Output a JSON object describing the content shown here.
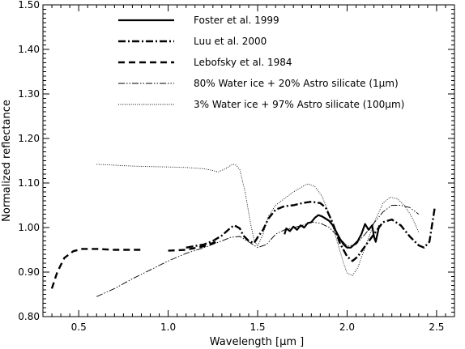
{
  "chart_data": {
    "type": "line",
    "title": "",
    "xlabel": "Wavelength [μm ]",
    "ylabel": "Normalized reflectance",
    "xlim": [
      0.3,
      2.6
    ],
    "ylim": [
      0.8,
      1.5
    ],
    "xticks": [
      "0.5",
      "1.0",
      "1.5",
      "2.0",
      "2.5"
    ],
    "yticks": [
      "0.80",
      "0.90",
      "1.00",
      "1.10",
      "1.20",
      "1.30",
      "1.40",
      "1.50"
    ],
    "grid": false,
    "legend_position": "top",
    "series": [
      {
        "name": "Foster et al. 1999",
        "style": "solid-thick",
        "color": "#000000",
        "segments": [
          [
            [
              1.65,
              0.985
            ],
            [
              1.66,
              0.998
            ],
            [
              1.68,
              0.992
            ],
            [
              1.7,
              1.002
            ],
            [
              1.72,
              0.995
            ],
            [
              1.74,
              1.005
            ],
            [
              1.76,
              1.0
            ],
            [
              1.78,
              1.01
            ],
            [
              1.8,
              1.012
            ],
            [
              1.82,
              1.022
            ],
            [
              1.84,
              1.028
            ],
            [
              1.86,
              1.025
            ],
            [
              1.88,
              1.02
            ],
            [
              1.9,
              1.015
            ],
            [
              1.92,
              1.005
            ],
            [
              1.94,
              0.99
            ],
            [
              1.96,
              0.975
            ],
            [
              1.98,
              0.962
            ],
            [
              2.0,
              0.955
            ],
            [
              2.02,
              0.955
            ],
            [
              2.04,
              0.962
            ],
            [
              2.06,
              0.97
            ],
            [
              2.08,
              0.985
            ],
            [
              2.1,
              1.008
            ],
            [
              2.12,
              0.995
            ],
            [
              2.14,
              1.005
            ],
            [
              2.15,
              0.98
            ],
            [
              2.16,
              0.968
            ],
            [
              2.18,
              1.005
            ]
          ]
        ]
      },
      {
        "name": "Luu et al. 2000",
        "style": "dash-dot-thick",
        "color": "#000000",
        "segments": [
          [
            [
              1.1,
              0.955
            ],
            [
              1.2,
              0.962
            ],
            [
              1.25,
              0.97
            ],
            [
              1.3,
              0.982
            ],
            [
              1.35,
              1.0
            ],
            [
              1.37,
              1.005
            ],
            [
              1.4,
              0.998
            ],
            [
              1.42,
              0.982
            ],
            [
              1.45,
              0.97
            ],
            [
              1.48,
              0.965
            ],
            [
              1.5,
              0.978
            ],
            [
              1.53,
              0.995
            ],
            [
              1.56,
              1.02
            ],
            [
              1.6,
              1.04
            ],
            [
              1.65,
              1.048
            ],
            [
              1.7,
              1.05
            ],
            [
              1.75,
              1.055
            ],
            [
              1.8,
              1.058
            ],
            [
              1.85,
              1.055
            ],
            [
              1.88,
              1.045
            ],
            [
              1.92,
              1.01
            ],
            [
              1.96,
              0.965
            ],
            [
              2.0,
              0.935
            ],
            [
              2.03,
              0.925
            ],
            [
              2.06,
              0.935
            ],
            [
              2.1,
              0.958
            ],
            [
              2.15,
              0.985
            ],
            [
              2.2,
              1.012
            ],
            [
              2.25,
              1.018
            ],
            [
              2.3,
              1.005
            ],
            [
              2.35,
              0.98
            ],
            [
              2.4,
              0.96
            ],
            [
              2.43,
              0.955
            ],
            [
              2.46,
              0.968
            ],
            [
              2.49,
              1.045
            ]
          ]
        ]
      },
      {
        "name": "Lebofsky et al. 1984",
        "style": "dashed-thick",
        "color": "#000000",
        "segments": [
          [
            [
              0.35,
              0.863
            ],
            [
              0.38,
              0.9
            ],
            [
              0.42,
              0.932
            ],
            [
              0.47,
              0.947
            ],
            [
              0.52,
              0.952
            ],
            [
              0.6,
              0.952
            ],
            [
              0.7,
              0.95
            ],
            [
              0.8,
              0.95
            ],
            [
              0.85,
              0.95
            ]
          ],
          [
            [
              1.0,
              0.948
            ],
            [
              1.1,
              0.95
            ],
            [
              1.2,
              0.958
            ],
            [
              1.27,
              0.968
            ]
          ]
        ]
      },
      {
        "name": "80% Water ice + 20% Astro silicate (1μm)",
        "style": "dash-dot-dot-thin",
        "color": "#000000",
        "segments": [
          [
            [
              0.6,
              0.845
            ],
            [
              0.7,
              0.863
            ],
            [
              0.8,
              0.885
            ],
            [
              0.9,
              0.905
            ],
            [
              1.0,
              0.925
            ],
            [
              1.1,
              0.942
            ],
            [
              1.2,
              0.955
            ],
            [
              1.3,
              0.97
            ],
            [
              1.35,
              0.978
            ],
            [
              1.4,
              0.98
            ],
            [
              1.45,
              0.968
            ],
            [
              1.5,
              0.955
            ],
            [
              1.55,
              0.962
            ],
            [
              1.6,
              0.985
            ],
            [
              1.65,
              0.995
            ],
            [
              1.7,
              1.0
            ],
            [
              1.75,
              1.005
            ],
            [
              1.8,
              1.012
            ],
            [
              1.85,
              1.01
            ],
            [
              1.9,
              1.0
            ],
            [
              1.95,
              0.98
            ],
            [
              2.0,
              0.958
            ],
            [
              2.05,
              0.962
            ],
            [
              2.1,
              0.985
            ],
            [
              2.15,
              1.01
            ],
            [
              2.2,
              1.035
            ],
            [
              2.25,
              1.05
            ],
            [
              2.3,
              1.05
            ],
            [
              2.35,
              1.045
            ],
            [
              2.4,
              1.03
            ]
          ]
        ]
      },
      {
        "name": "3% Water ice + 97% Astro silicate (100μm)",
        "style": "dotted-thin",
        "color": "#000000",
        "segments": [
          [
            [
              0.6,
              1.142
            ],
            [
              0.7,
              1.14
            ],
            [
              0.8,
              1.138
            ],
            [
              0.9,
              1.137
            ],
            [
              1.0,
              1.136
            ],
            [
              1.1,
              1.135
            ],
            [
              1.2,
              1.132
            ],
            [
              1.25,
              1.128
            ],
            [
              1.28,
              1.125
            ],
            [
              1.32,
              1.132
            ],
            [
              1.36,
              1.142
            ],
            [
              1.38,
              1.14
            ],
            [
              1.4,
              1.13
            ],
            [
              1.43,
              1.08
            ],
            [
              1.46,
              1.01
            ],
            [
              1.48,
              0.972
            ],
            [
              1.5,
              0.958
            ],
            [
              1.53,
              0.985
            ],
            [
              1.56,
              1.025
            ],
            [
              1.6,
              1.05
            ],
            [
              1.65,
              1.065
            ],
            [
              1.7,
              1.08
            ],
            [
              1.75,
              1.092
            ],
            [
              1.78,
              1.098
            ],
            [
              1.82,
              1.092
            ],
            [
              1.86,
              1.07
            ],
            [
              1.9,
              1.03
            ],
            [
              1.94,
              0.975
            ],
            [
              1.98,
              0.92
            ],
            [
              2.0,
              0.898
            ],
            [
              2.03,
              0.892
            ],
            [
              2.06,
              0.91
            ],
            [
              2.1,
              0.955
            ],
            [
              2.15,
              1.01
            ],
            [
              2.2,
              1.055
            ],
            [
              2.24,
              1.068
            ],
            [
              2.28,
              1.065
            ],
            [
              2.32,
              1.05
            ],
            [
              2.36,
              1.025
            ],
            [
              2.4,
              0.99
            ]
          ]
        ]
      }
    ]
  }
}
